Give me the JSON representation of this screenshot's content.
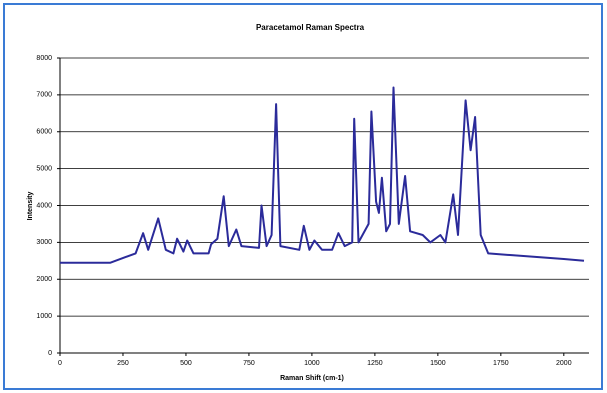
{
  "chart_data": {
    "type": "line",
    "title": "Paracetamol Raman Spectra",
    "x_label": "Raman Shift (cm-1)",
    "y_label": "Intensity",
    "series": [
      {
        "name": "Paracetamol",
        "color": "#2b2b9a",
        "x": [
          0,
          200,
          260,
          300,
          330,
          350,
          390,
          420,
          450,
          465,
          490,
          505,
          530,
          590,
          600,
          625,
          650,
          670,
          700,
          720,
          790,
          800,
          820,
          840,
          858,
          875,
          950,
          968,
          990,
          1010,
          1040,
          1080,
          1105,
          1130,
          1160,
          1168,
          1185,
          1225,
          1236,
          1255,
          1266,
          1278,
          1295,
          1310,
          1324,
          1345,
          1370,
          1390,
          1440,
          1470,
          1510,
          1530,
          1561,
          1580,
          1610,
          1630,
          1648,
          1670,
          1700,
          1800,
          2000,
          2080
        ],
        "values": [
          2450,
          2450,
          2600,
          2700,
          3250,
          2800,
          3650,
          2800,
          2700,
          3100,
          2750,
          3050,
          2700,
          2700,
          2950,
          3100,
          4250,
          2900,
          3350,
          2900,
          2850,
          4000,
          2900,
          3200,
          6750,
          2900,
          2800,
          3450,
          2800,
          3050,
          2800,
          2800,
          3250,
          2900,
          3000,
          6350,
          3000,
          3500,
          6550,
          4100,
          3800,
          4750,
          3300,
          3500,
          7200,
          3500,
          4800,
          3300,
          3200,
          3000,
          3200,
          3000,
          4300,
          3200,
          6850,
          5500,
          6400,
          3200,
          2700,
          2650,
          2550,
          2500
        ]
      }
    ],
    "xlim": [
      0,
      2100
    ],
    "xticks": [
      0,
      250,
      500,
      750,
      1000,
      1250,
      1500,
      1750,
      2000
    ],
    "ylim": [
      0,
      8000
    ],
    "yticks": [
      0,
      1000,
      2000,
      3000,
      4000,
      5000,
      6000,
      7000,
      8000
    ],
    "grid": true
  }
}
